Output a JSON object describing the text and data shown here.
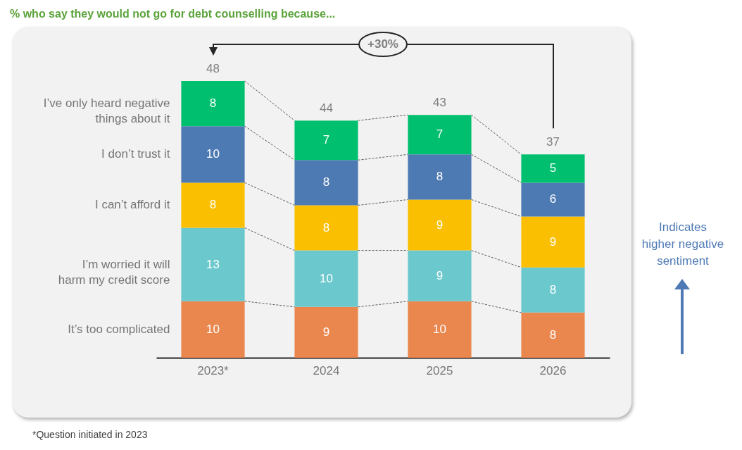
{
  "chart_data": {
    "type": "bar",
    "title": "% who say they would not go for debt counselling because...",
    "categories": [
      "2023*",
      "2024",
      "2025",
      "2026"
    ],
    "stacked": true,
    "series": [
      {
        "name": "It’s too complicated",
        "color": "#ea874e",
        "values": [
          10,
          9,
          10,
          8
        ]
      },
      {
        "name": "I’m worried it will harm my credit score",
        "color": "#6bc8cc",
        "values": [
          13,
          10,
          9,
          8
        ]
      },
      {
        "name": "I can’t afford it",
        "color": "#f9bf00",
        "values": [
          8,
          8,
          9,
          9
        ]
      },
      {
        "name": "I don’t trust it",
        "color": "#4e7ab4",
        "values": [
          10,
          8,
          8,
          6
        ]
      },
      {
        "name": "I’ve only heard negative things about it",
        "color": "#00bf6f",
        "values": [
          8,
          7,
          7,
          5
        ]
      }
    ],
    "data_labels": true,
    "totals": [
      "48",
      "44",
      "43",
      "37"
    ],
    "annotations": [
      "+30%",
      "Indicates higher negative sentiment",
      "*Question initiated in 2023"
    ]
  }
}
